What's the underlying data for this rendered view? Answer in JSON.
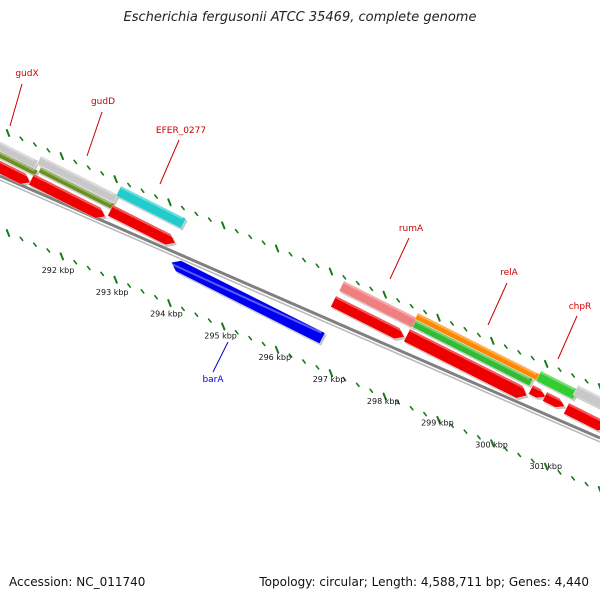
{
  "header": {
    "title": "Escherichia fergusonii ATCC 35469, complete genome"
  },
  "footer": {
    "accession": "Accession: NC_011740",
    "summary": "Topology: circular; Length: 4,588,711 bp; Genes: 4,440"
  },
  "colors": {
    "grid": "#1a7a1a",
    "backbone": "#808080",
    "cds": "#ee0000",
    "gene_label": "#cc0000",
    "minus_label": "#0000cc"
  },
  "genes_plus": [
    {
      "name": "gudX",
      "label": "gudX",
      "color": "#c8c8c8"
    },
    {
      "name": "gudD",
      "label": "gudD",
      "color": "#c8c8c8"
    },
    {
      "name": "EFER_0277",
      "label": "EFER_0277",
      "color": "#22cccc"
    },
    {
      "name": "rumA",
      "label": "rumA",
      "color": "#f08080"
    },
    {
      "name": "relA",
      "label": "relA",
      "color": "#ff8800"
    },
    {
      "name": "chpR",
      "label": "chpR",
      "color": "#33cc33"
    }
  ],
  "genes_minus": [
    {
      "name": "barA",
      "label": "barA",
      "color": "#0000ee"
    }
  ],
  "scale_ticks": [
    "292 kbp",
    "293 kbp",
    "294 kbp",
    "295 kbp",
    "296 kbp",
    "297 kbp",
    "298 kbp",
    "299 kbp",
    "300 kbp",
    "301 kbp"
  ]
}
